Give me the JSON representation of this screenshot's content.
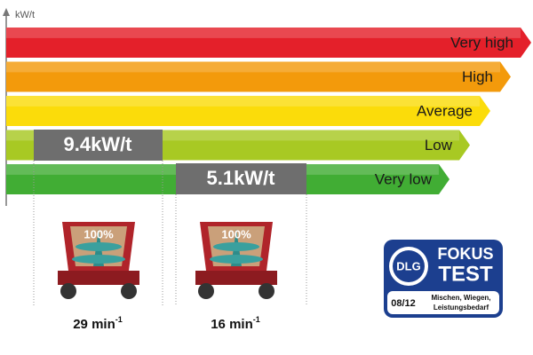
{
  "axis_label": "kW/t",
  "levels": [
    {
      "label": "Very high",
      "color": "#e4202a"
    },
    {
      "label": "High",
      "color": "#f39a0b"
    },
    {
      "label": "Average",
      "color": "#fbdc0a"
    },
    {
      "label": "Low",
      "color": "#a8c923"
    },
    {
      "label": "Very low",
      "color": "#41ad34"
    }
  ],
  "measurements": [
    {
      "label": "9.4kW/t"
    },
    {
      "label": "5.1kW/t"
    }
  ],
  "machines": [
    {
      "fill": "100%",
      "speed": "29 min",
      "unit_exponent": "-1"
    },
    {
      "fill": "100%",
      "speed": "16 min",
      "unit_exponent": "-1"
    }
  ],
  "badge": {
    "logo": "DLG",
    "line1": "FOKUS",
    "line2": "TEST",
    "date": "08/12",
    "caption": [
      "Mischen, Wiegen,",
      "Leistungsbedarf"
    ]
  }
}
